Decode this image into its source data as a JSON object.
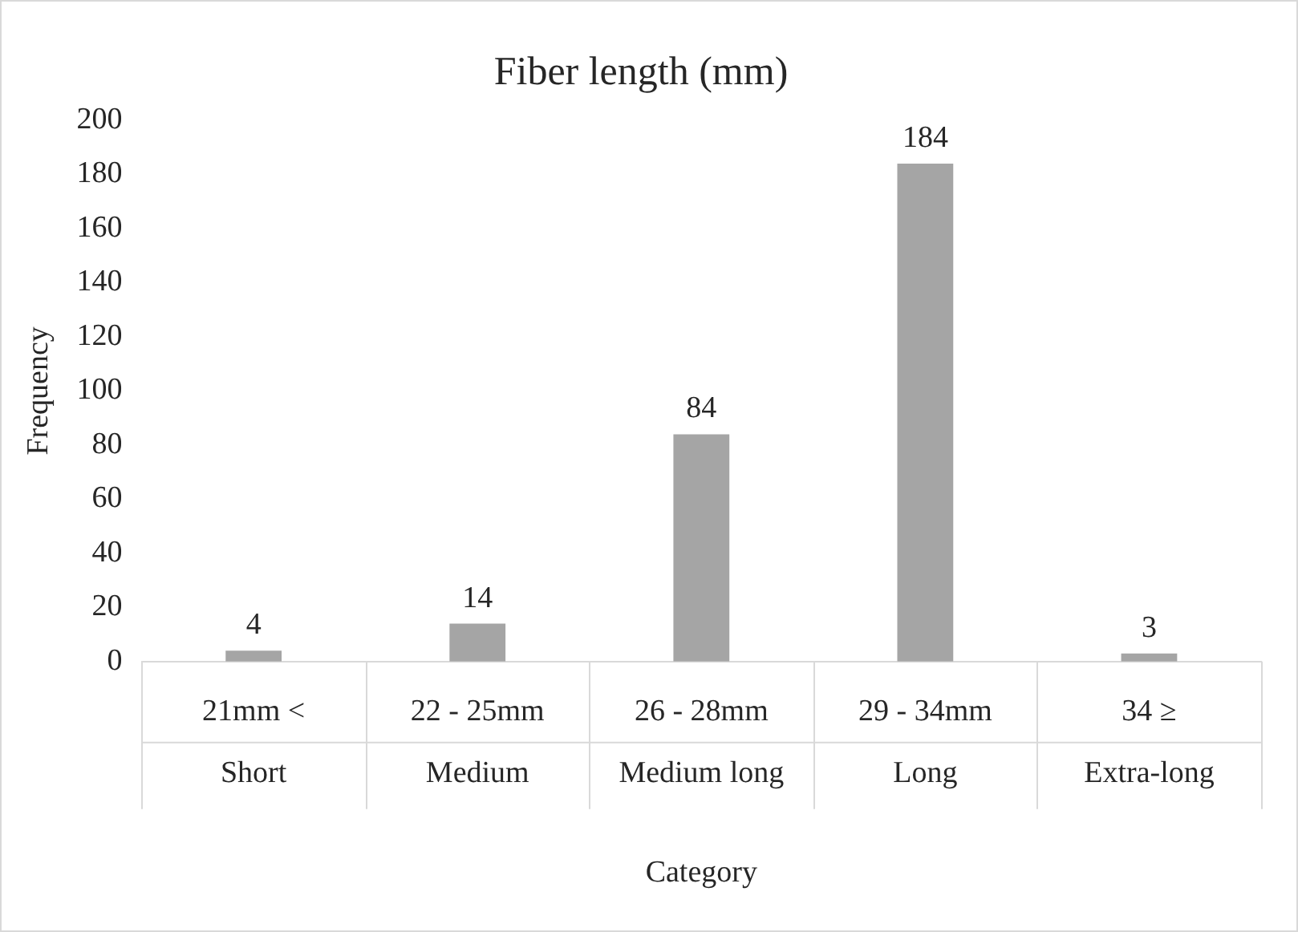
{
  "chart_data": {
    "type": "bar",
    "title": "Fiber length (mm)",
    "xlabel": "Category",
    "ylabel": "Frequency",
    "categories": [
      "21mm <",
      "22 - 25mm",
      "26 - 28mm",
      "29 - 34mm",
      "34 ≥"
    ],
    "values": [
      4,
      14,
      84,
      184,
      3
    ],
    "color": "#a5a5a5",
    "ylim": [
      0,
      200
    ],
    "yticks": [
      0,
      20,
      40,
      60,
      80,
      100,
      120,
      140,
      160,
      180,
      200
    ],
    "grid": false,
    "legend": false,
    "data_labels": true,
    "annotations": [
      "Short",
      "Medium",
      "Medium long",
      "Long",
      "Extra-long"
    ]
  }
}
